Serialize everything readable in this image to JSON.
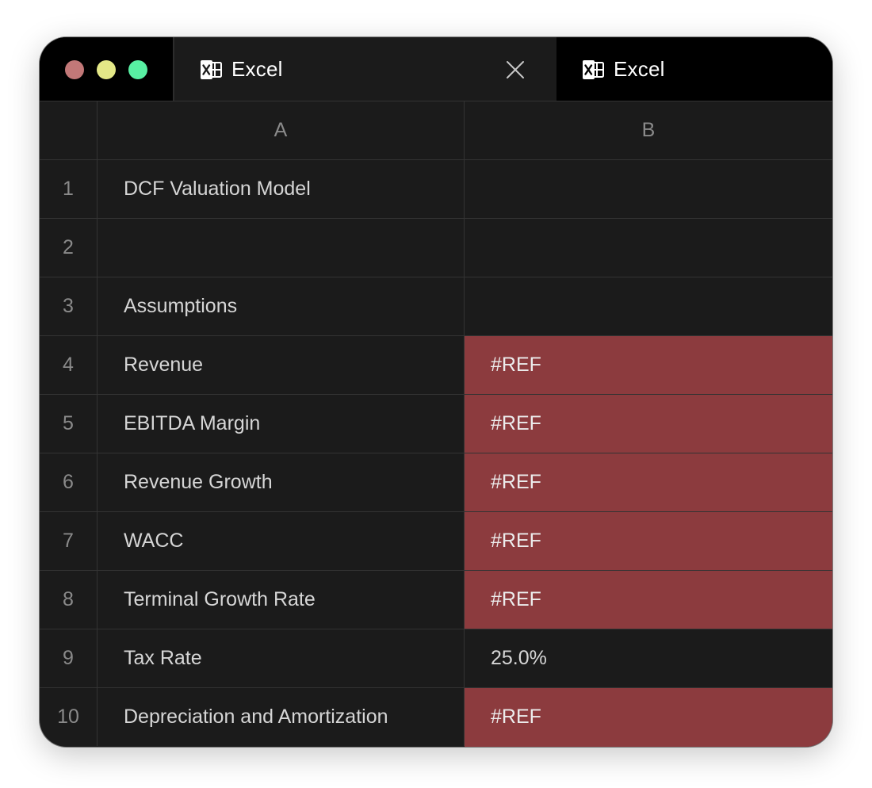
{
  "window": {
    "tabs": [
      {
        "label": "Excel",
        "icon": "excel-icon",
        "active": true
      },
      {
        "label": "Excel",
        "icon": "excel-icon",
        "active": false
      }
    ],
    "close_icon": "close-icon",
    "traffic_lights": {
      "red": "#c27878",
      "yellow": "#e4e887",
      "green": "#58f0a3"
    }
  },
  "sheet": {
    "columns": [
      "A",
      "B"
    ],
    "rows": [
      {
        "num": "1",
        "a": "DCF Valuation Model",
        "b": "",
        "error": false
      },
      {
        "num": "2",
        "a": "",
        "b": "",
        "error": false
      },
      {
        "num": "3",
        "a": "Assumptions",
        "b": "",
        "error": false
      },
      {
        "num": "4",
        "a": "Revenue",
        "b": "#REF",
        "error": true
      },
      {
        "num": "5",
        "a": "EBITDA Margin",
        "b": "#REF",
        "error": true
      },
      {
        "num": "6",
        "a": "Revenue Growth",
        "b": "#REF",
        "error": true
      },
      {
        "num": "7",
        "a": "WACC",
        "b": "#REF",
        "error": true
      },
      {
        "num": "8",
        "a": "Terminal Growth Rate",
        "b": "#REF",
        "error": true
      },
      {
        "num": "9",
        "a": "Tax Rate",
        "b": "25.0%",
        "error": false
      },
      {
        "num": "10",
        "a": "Depreciation and Amortization",
        "b": "#REF",
        "error": true
      }
    ],
    "colors": {
      "background": "#1b1b1b",
      "error_fill": "#8c3b3e",
      "gridline": "#333333"
    }
  }
}
